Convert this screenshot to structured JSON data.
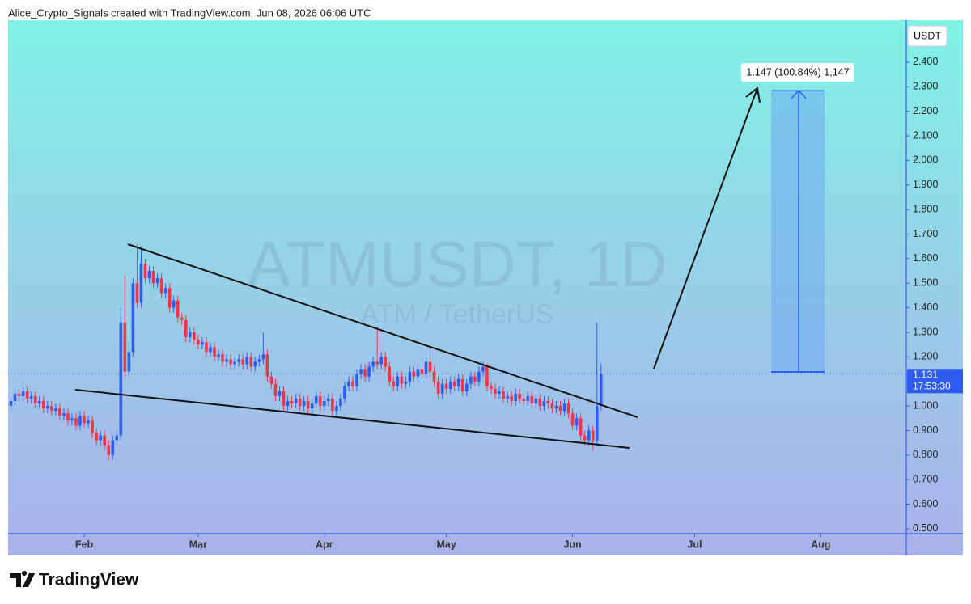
{
  "header": {
    "attribution": "Alice_Crypto_Signals created with TradingView.com, Jun 08, 2026 06:06 UTC"
  },
  "chart_data": {
    "type": "candlestick",
    "symbol": "ATMUSDT, 1D",
    "description": "ATM / TetherUS",
    "currency": "USDT",
    "x": [
      13,
      14,
      15,
      16,
      17,
      18,
      19,
      20,
      21,
      22,
      23,
      24,
      25,
      26,
      27,
      28,
      29,
      30,
      31,
      32,
      33,
      34,
      35,
      36,
      37,
      38,
      39,
      40,
      41,
      42,
      43,
      44,
      45,
      46,
      47,
      48,
      49,
      50,
      51,
      52,
      53,
      54,
      55,
      56,
      57,
      58,
      59,
      60,
      61,
      62,
      63,
      64,
      65,
      66,
      67,
      68,
      69,
      70,
      71,
      72,
      73,
      74,
      75,
      76,
      77,
      78,
      79,
      80,
      81,
      82,
      83,
      84,
      85,
      86,
      87,
      88,
      89,
      90,
      91,
      92,
      93,
      94,
      95,
      96,
      97,
      98,
      99,
      100,
      101,
      102,
      103,
      104,
      105,
      106,
      107,
      108,
      109,
      110,
      111,
      112,
      113,
      114,
      115,
      116,
      117,
      118,
      119,
      120,
      121,
      122,
      123,
      124,
      125,
      126,
      127,
      128,
      129,
      130,
      131,
      132,
      133,
      134,
      135,
      136,
      137,
      138,
      139,
      140,
      141,
      142,
      143,
      144,
      145,
      146,
      147,
      148,
      149,
      150,
      151,
      152,
      153,
      154,
      155,
      156,
      157,
      158
    ],
    "open": [
      1.0,
      1.02,
      1.05,
      1.04,
      1.06,
      1.03,
      1.04,
      1.01,
      1.02,
      0.99,
      1.0,
      0.98,
      0.99,
      0.96,
      0.97,
      0.94,
      0.95,
      0.92,
      0.96,
      0.93,
      0.94,
      0.89,
      0.86,
      0.88,
      0.84,
      0.8,
      0.86,
      0.88,
      1.34,
      1.14,
      1.22,
      1.5,
      1.42,
      1.58,
      1.52,
      1.55,
      1.5,
      1.52,
      1.46,
      1.48,
      1.4,
      1.43,
      1.36,
      1.35,
      1.28,
      1.3,
      1.27,
      1.25,
      1.26,
      1.22,
      1.24,
      1.2,
      1.21,
      1.18,
      1.19,
      1.17,
      1.18,
      1.19,
      1.17,
      1.2,
      1.16,
      1.18,
      1.19,
      1.21,
      1.12,
      1.09,
      1.04,
      1.06,
      1.0,
      1.02,
      1.01,
      1.03,
      1.0,
      1.02,
      0.99,
      1.01,
      1.04,
      1.0,
      1.02,
      1.03,
      0.98,
      1.0,
      1.03,
      1.08,
      1.1,
      1.08,
      1.13,
      1.15,
      1.12,
      1.16,
      1.18,
      1.17,
      1.2,
      1.16,
      1.1,
      1.08,
      1.12,
      1.09,
      1.1,
      1.14,
      1.12,
      1.15,
      1.13,
      1.18,
      1.14,
      1.1,
      1.05,
      1.09,
      1.07,
      1.1,
      1.08,
      1.11,
      1.06,
      1.09,
      1.12,
      1.1,
      1.14,
      1.16,
      1.08,
      1.07,
      1.05,
      1.06,
      1.03,
      1.04,
      1.02,
      1.05,
      1.03,
      1.02,
      1.04,
      1.01,
      1.03,
      1.0,
      1.02,
      1.01,
      0.99,
      1.0,
      0.98,
      1.01,
      0.97,
      0.92,
      0.95,
      0.88,
      0.86,
      0.9,
      0.86,
      1.0
    ],
    "high": [
      1.04,
      1.07,
      1.07,
      1.08,
      1.08,
      1.06,
      1.06,
      1.04,
      1.04,
      1.02,
      1.02,
      1.01,
      1.01,
      0.99,
      0.99,
      0.97,
      0.97,
      0.98,
      0.98,
      0.96,
      0.96,
      0.91,
      0.9,
      0.9,
      0.86,
      0.88,
      0.9,
      1.4,
      1.53,
      1.26,
      1.52,
      1.66,
      1.65,
      1.6,
      1.57,
      1.57,
      1.54,
      1.54,
      1.5,
      1.5,
      1.45,
      1.45,
      1.38,
      1.37,
      1.32,
      1.32,
      1.29,
      1.28,
      1.28,
      1.26,
      1.26,
      1.23,
      1.23,
      1.21,
      1.21,
      1.2,
      1.21,
      1.21,
      1.22,
      1.22,
      1.2,
      1.21,
      1.3,
      1.23,
      1.14,
      1.11,
      1.08,
      1.08,
      1.04,
      1.04,
      1.05,
      1.05,
      1.04,
      1.04,
      1.03,
      1.06,
      1.06,
      1.04,
      1.05,
      1.05,
      1.02,
      1.05,
      1.1,
      1.12,
      1.12,
      1.15,
      1.17,
      1.17,
      1.18,
      1.2,
      1.32,
      1.22,
      1.22,
      1.18,
      1.12,
      1.14,
      1.14,
      1.12,
      1.16,
      1.16,
      1.17,
      1.17,
      1.2,
      1.24,
      1.16,
      1.12,
      1.11,
      1.11,
      1.12,
      1.12,
      1.13,
      1.13,
      1.11,
      1.14,
      1.14,
      1.16,
      1.18,
      1.17,
      1.1,
      1.09,
      1.08,
      1.08,
      1.06,
      1.06,
      1.07,
      1.07,
      1.05,
      1.06,
      1.06,
      1.05,
      1.05,
      1.04,
      1.04,
      1.03,
      1.02,
      1.02,
      1.03,
      1.03,
      0.99,
      0.97,
      0.97,
      0.9,
      0.92,
      0.92,
      1.34,
      1.17
    ],
    "low": [
      0.98,
      1.0,
      1.02,
      1.02,
      1.01,
      1.01,
      0.99,
      0.99,
      0.97,
      0.97,
      0.96,
      0.96,
      0.94,
      0.94,
      0.92,
      0.92,
      0.9,
      0.9,
      0.91,
      0.91,
      0.87,
      0.84,
      0.84,
      0.82,
      0.78,
      0.78,
      0.84,
      0.86,
      1.12,
      1.12,
      1.2,
      1.4,
      1.4,
      1.5,
      1.5,
      1.48,
      1.48,
      1.44,
      1.44,
      1.38,
      1.38,
      1.34,
      1.33,
      1.26,
      1.26,
      1.25,
      1.23,
      1.23,
      1.2,
      1.2,
      1.18,
      1.18,
      1.16,
      1.16,
      1.15,
      1.15,
      1.16,
      1.15,
      1.15,
      1.14,
      1.14,
      1.16,
      1.17,
      1.1,
      1.07,
      1.02,
      1.02,
      0.98,
      0.98,
      0.99,
      0.99,
      0.98,
      0.98,
      0.97,
      0.97,
      0.99,
      0.98,
      0.98,
      1.0,
      0.96,
      0.96,
      0.98,
      1.01,
      1.06,
      1.06,
      1.06,
      1.11,
      1.1,
      1.1,
      1.14,
      1.15,
      1.15,
      1.14,
      1.08,
      1.06,
      1.06,
      1.07,
      1.07,
      1.08,
      1.1,
      1.1,
      1.11,
      1.11,
      1.12,
      1.08,
      1.03,
      1.03,
      1.05,
      1.05,
      1.06,
      1.06,
      1.04,
      1.04,
      1.07,
      1.08,
      1.08,
      1.12,
      1.06,
      1.05,
      1.03,
      1.03,
      1.01,
      1.01,
      1.0,
      1.0,
      1.01,
      1.0,
      1.0,
      0.99,
      0.99,
      0.98,
      0.98,
      0.99,
      0.97,
      0.97,
      0.96,
      0.96,
      0.95,
      0.9,
      0.9,
      0.86,
      0.84,
      0.84,
      0.82,
      0.84,
      0.98
    ],
    "close": [
      1.02,
      1.05,
      1.04,
      1.06,
      1.03,
      1.04,
      1.01,
      1.02,
      0.99,
      1.0,
      0.98,
      0.99,
      0.96,
      0.97,
      0.94,
      0.95,
      0.92,
      0.96,
      0.93,
      0.94,
      0.89,
      0.86,
      0.88,
      0.84,
      0.8,
      0.86,
      0.88,
      1.34,
      1.14,
      1.22,
      1.5,
      1.42,
      1.58,
      1.52,
      1.55,
      1.5,
      1.52,
      1.46,
      1.48,
      1.4,
      1.43,
      1.36,
      1.35,
      1.28,
      1.3,
      1.27,
      1.25,
      1.26,
      1.22,
      1.24,
      1.2,
      1.21,
      1.18,
      1.19,
      1.17,
      1.18,
      1.19,
      1.17,
      1.2,
      1.16,
      1.18,
      1.19,
      1.21,
      1.12,
      1.09,
      1.04,
      1.06,
      1.0,
      1.02,
      1.01,
      1.03,
      1.0,
      1.02,
      0.99,
      1.01,
      1.04,
      1.0,
      1.02,
      1.03,
      0.98,
      1.0,
      1.03,
      1.08,
      1.1,
      1.08,
      1.13,
      1.15,
      1.12,
      1.16,
      1.18,
      1.17,
      1.2,
      1.16,
      1.1,
      1.08,
      1.12,
      1.09,
      1.1,
      1.14,
      1.12,
      1.15,
      1.13,
      1.18,
      1.14,
      1.1,
      1.05,
      1.09,
      1.07,
      1.1,
      1.08,
      1.11,
      1.06,
      1.09,
      1.12,
      1.1,
      1.14,
      1.16,
      1.08,
      1.07,
      1.05,
      1.06,
      1.03,
      1.04,
      1.02,
      1.05,
      1.03,
      1.02,
      1.04,
      1.01,
      1.03,
      1.0,
      1.02,
      1.01,
      0.99,
      1.0,
      0.98,
      1.01,
      0.97,
      0.92,
      0.95,
      0.88,
      0.86,
      0.9,
      0.86,
      1.0,
      1.131
    ],
    "up_color": "#2f5cf0",
    "down_color": "#f23645",
    "xlim": [
      12.3,
      233
    ],
    "xticks": [
      {
        "value": 31,
        "label": "Feb"
      },
      {
        "value": 59,
        "label": "Mar"
      },
      {
        "value": 90,
        "label": "Apr"
      },
      {
        "value": 120,
        "label": "May"
      },
      {
        "value": 151,
        "label": "Jun"
      },
      {
        "value": 181,
        "label": "Jul"
      },
      {
        "value": 212,
        "label": "Aug"
      }
    ],
    "ylim": [
      0.48,
      2.571
    ],
    "yticks": [
      {
        "value": 0.5,
        "label": "0.500"
      },
      {
        "value": 0.6,
        "label": "0.600"
      },
      {
        "value": 0.7,
        "label": "0.700"
      },
      {
        "value": 0.8,
        "label": "0.800"
      },
      {
        "value": 0.9,
        "label": "0.900"
      },
      {
        "value": 1.0,
        "label": "1.000"
      },
      {
        "value": 1.1,
        "label": "1.100"
      },
      {
        "value": 1.2,
        "label": "1.200"
      },
      {
        "value": 1.3,
        "label": "1.300"
      },
      {
        "value": 1.4,
        "label": "1.400"
      },
      {
        "value": 1.5,
        "label": "1.500"
      },
      {
        "value": 1.6,
        "label": "1.600"
      },
      {
        "value": 1.7,
        "label": "1.700"
      },
      {
        "value": 1.8,
        "label": "1.800"
      },
      {
        "value": 1.9,
        "label": "1.900"
      },
      {
        "value": 2.0,
        "label": "2.000"
      },
      {
        "value": 2.1,
        "label": "2.100"
      },
      {
        "value": 2.2,
        "label": "2.200"
      },
      {
        "value": 2.3,
        "label": "2.300"
      },
      {
        "value": 2.4,
        "label": "2.400"
      }
    ],
    "last_price": 1.131,
    "countdown": "17:53:30",
    "measure_label": "1.147 (100.84%) 1,147"
  },
  "footer": {
    "brand": "TradingView"
  }
}
